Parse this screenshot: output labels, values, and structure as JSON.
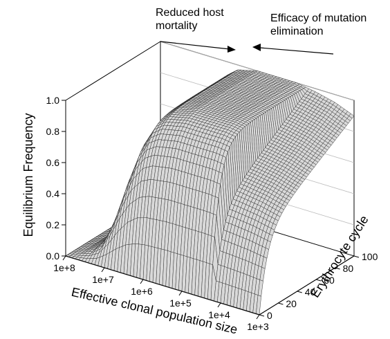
{
  "chart_data": {
    "type": "surface",
    "title": "",
    "zlabel": "Equilibrium Frequency",
    "xlabel": "Effective clonal population size",
    "ylabel": "Erythrocyte cycle",
    "x_ticks": [
      "1e+8",
      "1e+7",
      "1e+6",
      "1e+5",
      "1e+4",
      "1e+3"
    ],
    "x_log10": [
      8,
      7,
      6,
      5,
      4,
      3
    ],
    "y_ticks": [
      "0",
      "20",
      "40",
      "60",
      "80",
      "100"
    ],
    "y_values": [
      0,
      20,
      40,
      60,
      80,
      100
    ],
    "z_ticks": [
      "0.0",
      "0.2",
      "0.4",
      "0.6",
      "0.8",
      "1.0"
    ],
    "z_values": [
      0,
      0.2,
      0.4,
      0.6,
      0.8,
      1.0
    ],
    "xlim": [
      8,
      3
    ],
    "ylim": [
      0,
      100
    ],
    "zlim": [
      0,
      1
    ],
    "surface": {
      "description_profile_x_log10": [
        8.0,
        7.75,
        7.5,
        7.25,
        7.0,
        6.75,
        6.5,
        6.25,
        6.0,
        5.5,
        5.0,
        4.5,
        4.0,
        3.5,
        3.0
      ],
      "z_at_high_cycle": [
        0.0,
        0.02,
        0.06,
        0.15,
        0.35,
        0.6,
        0.8,
        0.92,
        0.97,
        1.0,
        1.0,
        1.0,
        0.98,
        0.95,
        0.9
      ],
      "z_at_cycle_0": [
        0.0,
        0.0,
        0.0,
        0.0,
        0.0,
        0.0,
        0.0,
        0.0,
        0.0,
        0.0,
        0.0,
        0.0,
        0.0,
        0.0,
        0.0
      ]
    }
  },
  "annotations": {
    "left_text_line1": "Reduced host",
    "left_text_line2": "mortality",
    "right_text_line1": "Efficacy of mutation",
    "right_text_line2": "elimination"
  }
}
